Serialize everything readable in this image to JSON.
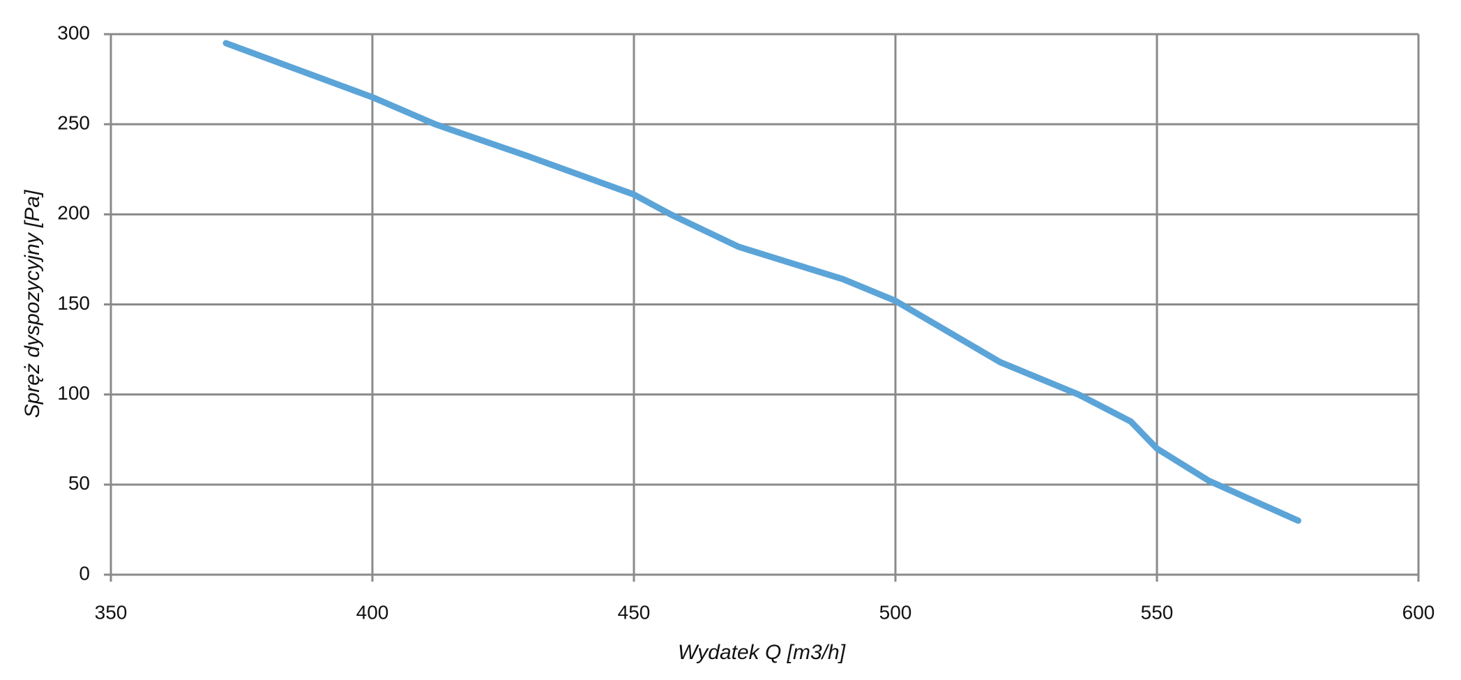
{
  "chart_data": {
    "type": "line",
    "x_label": "Wydatek Q [m3/h]",
    "y_label": "Spręż dyspozycyjny [Pa]",
    "x": [
      372,
      400,
      412,
      430,
      450,
      457,
      470,
      490,
      500,
      510,
      520,
      535,
      545,
      550,
      560,
      577
    ],
    "series": [
      {
        "name": "Spręż",
        "color": "#5ba4d8",
        "values": [
          295,
          265,
          250,
          232,
          211,
          200,
          182,
          164,
          152,
          135,
          118,
          100,
          85,
          70,
          52,
          30
        ]
      }
    ],
    "xlim": [
      350,
      600
    ],
    "xticks": [
      350,
      400,
      450,
      500,
      550,
      600
    ],
    "ylim": [
      0,
      300
    ],
    "yticks": [
      0,
      50,
      100,
      150,
      200,
      250,
      300
    ],
    "grid": true
  }
}
